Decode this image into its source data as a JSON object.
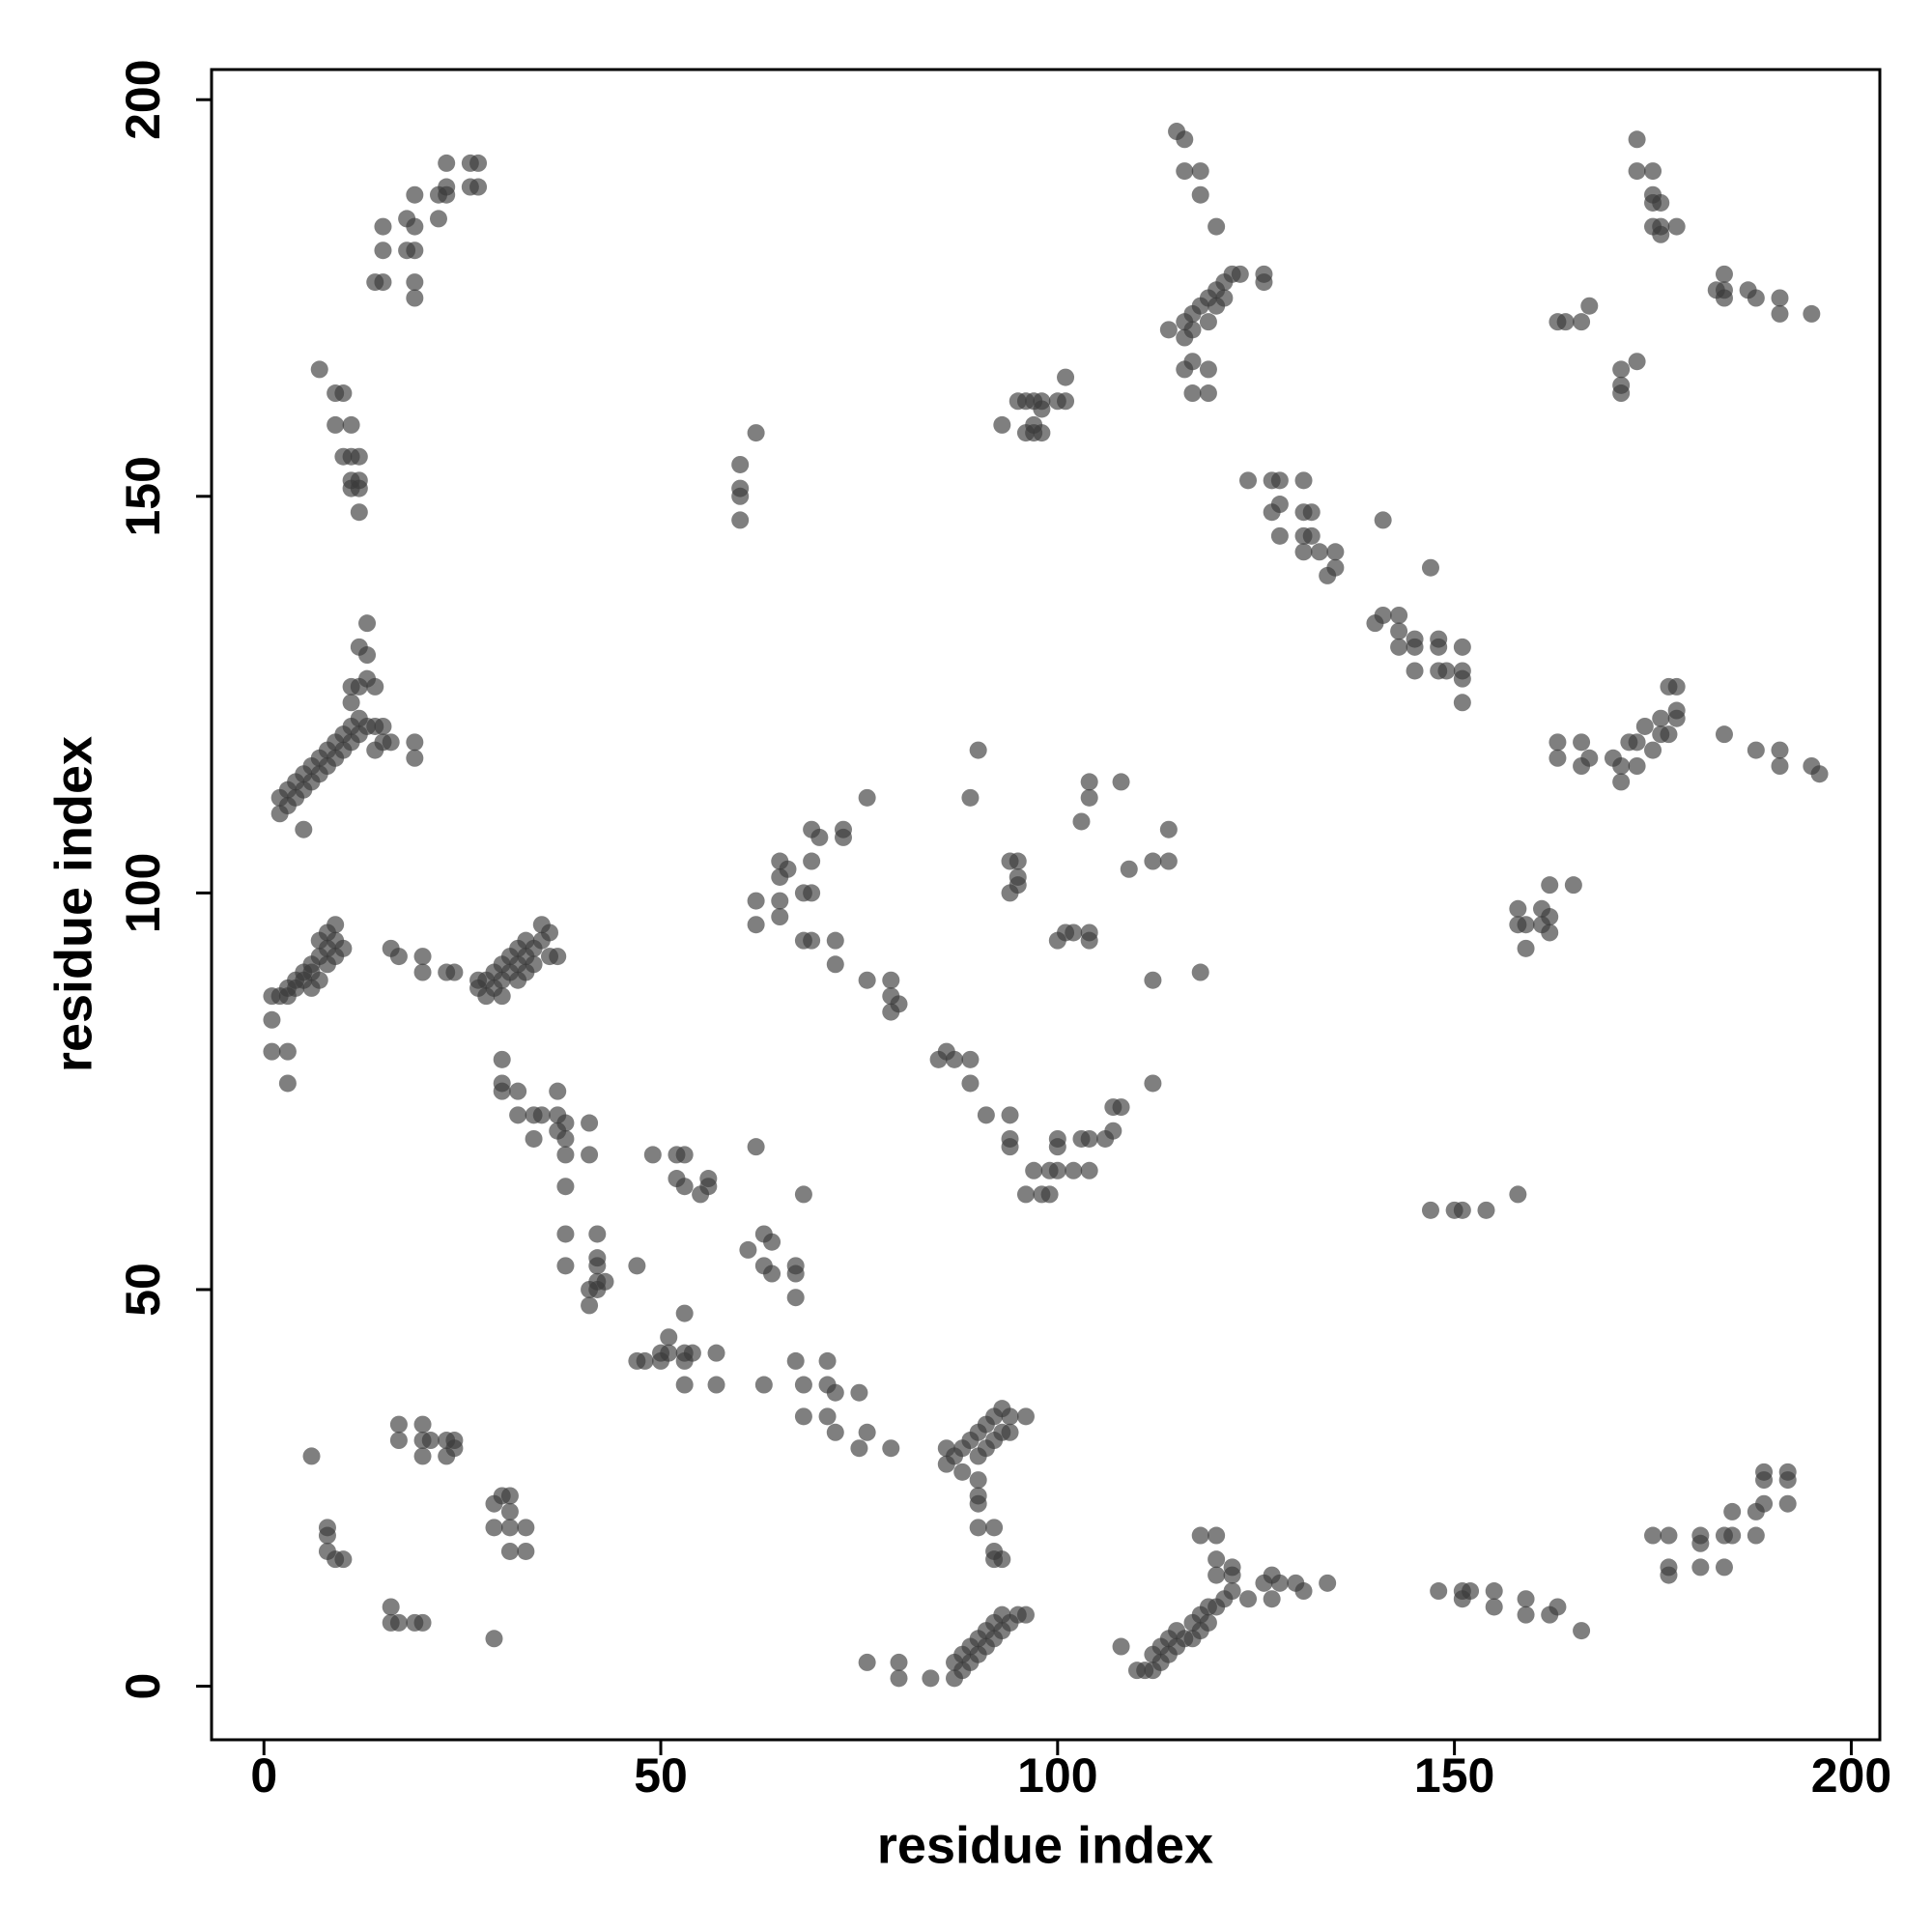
{
  "chart_data": {
    "type": "scatter",
    "xlabel": "residue index",
    "ylabel": "residue index",
    "xlim": [
      -6.6,
      203.6
    ],
    "ylim": [
      -6.75,
      203.8
    ],
    "xticks": [
      0,
      50,
      100,
      150,
      200
    ],
    "yticks": [
      0,
      50,
      100,
      150,
      200
    ],
    "grid": false,
    "color": "#3a3a3a",
    "opacity": 0.65,
    "x": [
      14,
      15,
      15,
      15,
      18,
      18,
      19,
      19,
      19,
      19,
      19,
      22,
      22,
      23,
      23,
      23,
      26,
      27,
      26,
      27,
      7,
      9,
      10,
      9,
      11,
      10,
      11,
      12,
      11,
      12,
      11,
      12,
      12,
      2,
      2,
      3,
      3,
      4,
      4,
      5,
      5,
      6,
      6,
      7,
      7,
      8,
      8,
      9,
      9,
      10,
      10,
      11,
      11,
      11,
      12,
      12,
      12,
      13,
      13,
      13,
      13,
      14,
      14,
      14,
      15,
      15,
      16,
      19,
      19,
      5,
      12,
      11,
      1,
      1,
      3,
      3,
      1,
      2,
      3,
      3,
      4,
      4,
      5,
      5,
      6,
      6,
      6,
      7,
      7,
      7,
      8,
      8,
      8,
      9,
      9,
      9,
      10,
      16,
      17,
      20,
      20,
      23,
      24,
      27,
      27,
      28,
      28,
      29,
      29,
      30,
      30,
      30,
      31,
      31,
      32,
      32,
      32,
      33,
      33,
      33,
      34,
      34,
      35,
      35,
      36,
      37,
      36,
      30,
      30,
      30,
      32,
      32,
      34,
      34,
      35,
      37,
      37,
      37,
      38,
      38,
      38,
      38,
      38,
      38,
      41,
      41,
      41,
      41,
      42,
      42,
      42,
      42,
      42,
      43,
      47,
      47,
      48,
      49,
      50,
      50,
      51,
      51,
      52,
      52,
      53,
      53,
      53,
      53,
      53,
      53,
      54,
      55,
      56,
      56,
      57,
      57,
      62,
      61,
      63,
      64,
      63,
      64,
      67,
      67,
      67,
      68,
      63,
      67,
      68,
      68,
      71,
      71,
      71,
      72,
      72,
      75,
      75,
      76,
      79,
      62,
      62,
      65,
      65,
      65,
      66,
      65,
      68,
      69,
      69,
      69,
      70,
      73,
      73,
      68,
      69,
      72,
      72,
      76,
      76,
      79,
      79,
      79,
      80,
      85,
      86,
      87,
      89,
      89,
      91,
      94,
      94,
      94,
      97,
      96,
      98,
      99,
      99,
      100,
      100,
      100,
      102,
      103,
      104,
      104,
      106,
      107,
      107,
      108,
      112,
      90,
      89,
      94,
      95,
      95,
      95,
      94,
      100,
      101,
      102,
      104,
      104,
      103,
      104,
      104,
      108,
      109,
      112,
      114,
      114,
      112,
      118,
      60,
      60,
      60,
      60,
      62,
      93,
      95,
      96,
      97,
      98,
      96,
      97,
      98,
      97,
      100,
      101,
      101,
      98,
      115,
      116,
      116,
      118,
      118,
      120,
      114,
      116,
      116,
      117,
      117,
      118,
      119,
      119,
      120,
      121,
      121,
      122,
      123,
      120,
      126,
      126,
      116,
      117,
      117,
      119,
      119,
      173,
      173,
      175,
      175,
      175,
      176,
      175,
      176,
      178,
      176,
      163,
      164,
      166,
      167,
      171,
      171,
      171,
      173,
      184,
      184,
      183,
      184,
      187,
      188,
      191,
      191,
      195,
      124,
      127,
      128,
      131,
      127,
      128,
      131,
      132,
      128,
      131,
      132,
      131,
      133,
      135,
      134,
      135,
      141,
      140,
      141,
      143,
      143,
      143,
      145,
      145,
      145,
      147,
      148,
      148,
      148,
      149,
      151,
      151,
      151,
      151,
      163,
      163,
      166,
      166,
      167,
      170,
      171,
      171,
      172,
      173,
      173,
      174,
      175,
      176,
      177,
      177,
      178,
      178,
      178,
      176,
      184,
      188,
      191,
      191,
      195,
      196,
      158,
      158,
      159,
      159,
      161,
      162,
      162,
      162,
      165,
      161,
      147,
      150,
      151,
      154,
      158,
      148,
      151,
      152,
      151,
      155,
      155,
      159,
      159,
      162,
      163,
      166,
      175,
      177,
      177,
      177,
      181,
      181,
      181,
      184,
      184,
      185,
      185,
      188,
      188,
      189,
      189,
      192,
      192,
      192,
      189,
      108,
      110,
      111,
      112,
      112,
      113,
      113,
      114,
      114,
      115,
      115,
      116,
      117,
      117,
      118,
      118,
      119,
      119,
      120,
      120,
      120,
      121,
      122,
      122,
      122,
      124,
      118,
      120,
      126,
      127,
      127,
      128,
      130,
      131,
      134,
      76,
      80,
      80,
      84,
      87,
      87,
      88,
      88,
      89,
      89,
      90,
      90,
      91,
      91,
      92,
      92,
      93,
      93,
      94,
      95,
      96,
      86,
      86,
      87,
      88,
      88,
      89,
      90,
      90,
      90,
      91,
      91,
      92,
      92,
      93,
      93,
      94,
      94,
      96,
      90,
      90,
      90,
      92,
      92,
      93,
      92,
      6,
      8,
      8,
      9,
      10,
      8,
      17,
      17,
      20,
      20,
      20,
      21,
      23,
      23,
      24,
      24,
      16,
      16,
      17,
      19,
      20,
      29,
      29,
      29,
      30,
      31,
      31,
      31,
      31,
      33,
      33
    ],
    "values": [
      177,
      177,
      181,
      184,
      185,
      181,
      181,
      177,
      175,
      184,
      188,
      185,
      188,
      189,
      188,
      192,
      192,
      192,
      189,
      189,
      166,
      163,
      163,
      159,
      159,
      155,
      155,
      155,
      152,
      152,
      151,
      151,
      148,
      110,
      112,
      111,
      113,
      112,
      114,
      113,
      115,
      114,
      116,
      115,
      117,
      116,
      118,
      117,
      119,
      118,
      120,
      119,
      121,
      124,
      120,
      122,
      126,
      121,
      127,
      130,
      134,
      126,
      121,
      118,
      121,
      119,
      119,
      119,
      117,
      108,
      131,
      126,
      84,
      80,
      80,
      76,
      87,
      87,
      88,
      87,
      88,
      89,
      89,
      90,
      88,
      90,
      91,
      89,
      92,
      94,
      91,
      93,
      95,
      92,
      94,
      96,
      93,
      93,
      92,
      92,
      90,
      90,
      90,
      89,
      88,
      87,
      89,
      88,
      90,
      87,
      89,
      91,
      90,
      92,
      89,
      91,
      93,
      90,
      92,
      94,
      91,
      93,
      94,
      96,
      92,
      92,
      95,
      79,
      76,
      75,
      75,
      72,
      72,
      69,
      72,
      72,
      70,
      75,
      69,
      71,
      67,
      63,
      57,
      53,
      71,
      67,
      50,
      48,
      57,
      54,
      53,
      51,
      50,
      51,
      53,
      41,
      41,
      67,
      41,
      42,
      42,
      44,
      67,
      64,
      67,
      63,
      42,
      41,
      47,
      38,
      42,
      62,
      64,
      63,
      42,
      38,
      68,
      55,
      57,
      56,
      53,
      52,
      53,
      49,
      52,
      62,
      38,
      41,
      38,
      34,
      41,
      38,
      34,
      37,
      32,
      37,
      30,
      32,
      30,
      99,
      96,
      97,
      99,
      104,
      103,
      102,
      100,
      100,
      104,
      108,
      107,
      108,
      107,
      94,
      94,
      94,
      91,
      112,
      89,
      89,
      87,
      85,
      86,
      79,
      80,
      79,
      79,
      76,
      72,
      72,
      69,
      68,
      65,
      62,
      62,
      62,
      65,
      65,
      68,
      69,
      65,
      69,
      69,
      65,
      69,
      70,
      73,
      73,
      76,
      118,
      112,
      104,
      104,
      102,
      101,
      100,
      94,
      95,
      95,
      95,
      94,
      109,
      112,
      114,
      114,
      103,
      104,
      104,
      108,
      89,
      90,
      154,
      151,
      150,
      147,
      158,
      159,
      162,
      162,
      162,
      162,
      158,
      158,
      158,
      159,
      162,
      162,
      165,
      161,
      196,
      195,
      191,
      191,
      188,
      184,
      171,
      172,
      170,
      173,
      171,
      174,
      175,
      172,
      176,
      177,
      175,
      178,
      178,
      174,
      178,
      177,
      166,
      167,
      163,
      166,
      163,
      195,
      191,
      191,
      188,
      187,
      187,
      184,
      184,
      184,
      183,
      172,
      172,
      172,
      174,
      166,
      164,
      163,
      167,
      178,
      176,
      176,
      175,
      176,
      175,
      175,
      173,
      173,
      152,
      152,
      152,
      152,
      148,
      149,
      148,
      148,
      145,
      145,
      145,
      143,
      143,
      143,
      140,
      141,
      147,
      134,
      135,
      135,
      133,
      131,
      132,
      131,
      128,
      141,
      132,
      131,
      128,
      128,
      131,
      128,
      127,
      124,
      119,
      117,
      119,
      116,
      117,
      117,
      114,
      116,
      119,
      116,
      119,
      121,
      118,
      122,
      120,
      126,
      126,
      123,
      122,
      120,
      120,
      118,
      118,
      116,
      116,
      115,
      98,
      96,
      96,
      93,
      98,
      97,
      95,
      101,
      101,
      96,
      60,
      60,
      60,
      60,
      62,
      12,
      12,
      12,
      11,
      12,
      10,
      11,
      9,
      9,
      10,
      7,
      19,
      19,
      15,
      14,
      19,
      18,
      15,
      19,
      15,
      22,
      19,
      22,
      19,
      23,
      26,
      23,
      27,
      26,
      27,
      5,
      2,
      2,
      4,
      2,
      3,
      5,
      4,
      6,
      5,
      7,
      6,
      8,
      6,
      9,
      7,
      8,
      10,
      10,
      16,
      14,
      11,
      12,
      15,
      14,
      11,
      19,
      19,
      13,
      14,
      11,
      13,
      13,
      12,
      13,
      3,
      3,
      1,
      1,
      1,
      3,
      4,
      2,
      5,
      3,
      6,
      4,
      7,
      5,
      8,
      6,
      9,
      7,
      8,
      9,
      9,
      30,
      28,
      29,
      27,
      30,
      31,
      32,
      29,
      26,
      33,
      30,
      34,
      31,
      35,
      32,
      34,
      32,
      34,
      24,
      23,
      20,
      20,
      17,
      16,
      16,
      29,
      20,
      17,
      16,
      16,
      19,
      33,
      31,
      33,
      31,
      29,
      31,
      31,
      29,
      30,
      31,
      10,
      8,
      8,
      8,
      8,
      6,
      23,
      20,
      24,
      24,
      22,
      20,
      17,
      20,
      17
    ]
  }
}
